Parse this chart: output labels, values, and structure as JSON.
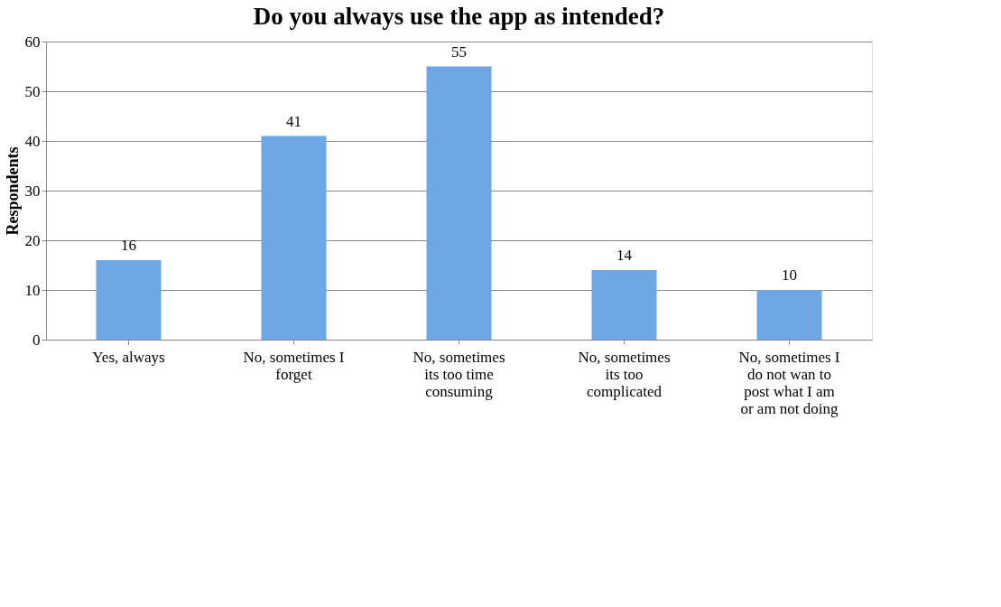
{
  "chart_data": {
    "type": "bar",
    "title": "Do you always use the app as intended?",
    "ylabel": "Respondents",
    "categories": [
      "Yes, always",
      "No, sometimes I forget",
      "No, sometimes its too time consuming",
      "No, sometimes its too complicated",
      "No, sometimes I do not wan to post what I am or am not doing"
    ],
    "values": [
      16,
      41,
      55,
      14,
      10
    ],
    "color": "#6ea6e6",
    "ylim": [
      0,
      60
    ],
    "yticks": [
      0,
      10,
      20,
      30,
      40,
      50,
      60
    ],
    "grid": "y",
    "data_labels": true
  }
}
